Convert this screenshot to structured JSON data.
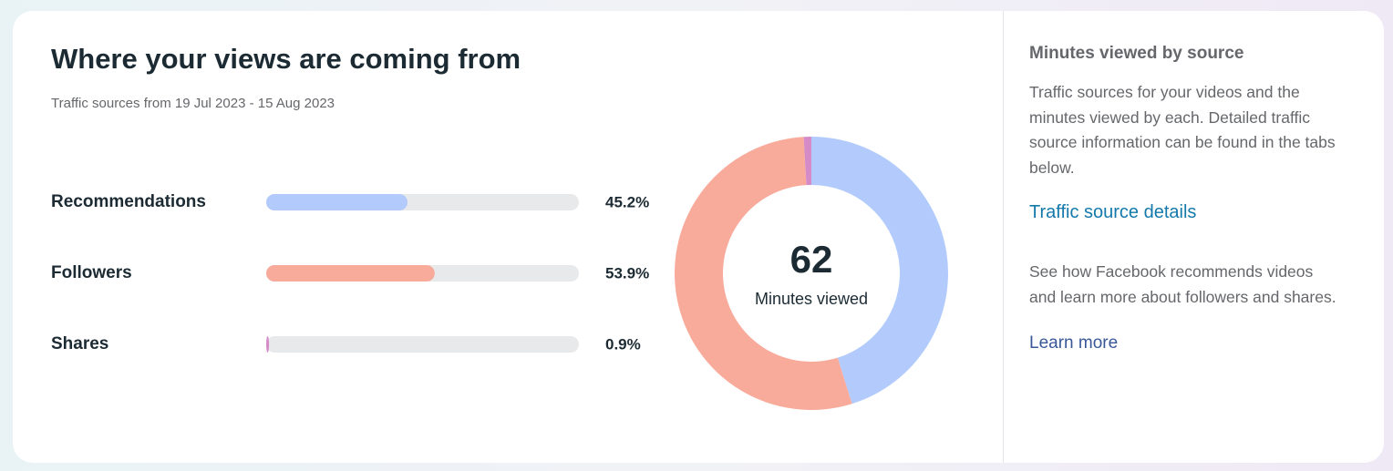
{
  "header": {
    "title": "Where your views are coming from",
    "subtitle": "Traffic sources from 19 Jul 2023 - 15 Aug 2023"
  },
  "chart_data": {
    "type": "donut",
    "categories": [
      "Recommendations",
      "Followers",
      "Shares"
    ],
    "values": [
      45.2,
      53.9,
      0.9
    ],
    "value_labels": [
      "45.2%",
      "53.9%",
      "0.9%"
    ],
    "colors": [
      "#b3cbfc",
      "#f9ab9b",
      "#d48bc8"
    ],
    "total": 62,
    "total_label": "Minutes viewed"
  },
  "side_panel": {
    "title": "Minutes viewed by source",
    "description": "Traffic sources for your videos and the minutes viewed by each. Detailed traffic source information can be found in the tabs below.",
    "details_link": "Traffic source details",
    "note": "See how Facebook recommends videos and learn more about followers and shares.",
    "learn_more_link": "Learn more"
  }
}
